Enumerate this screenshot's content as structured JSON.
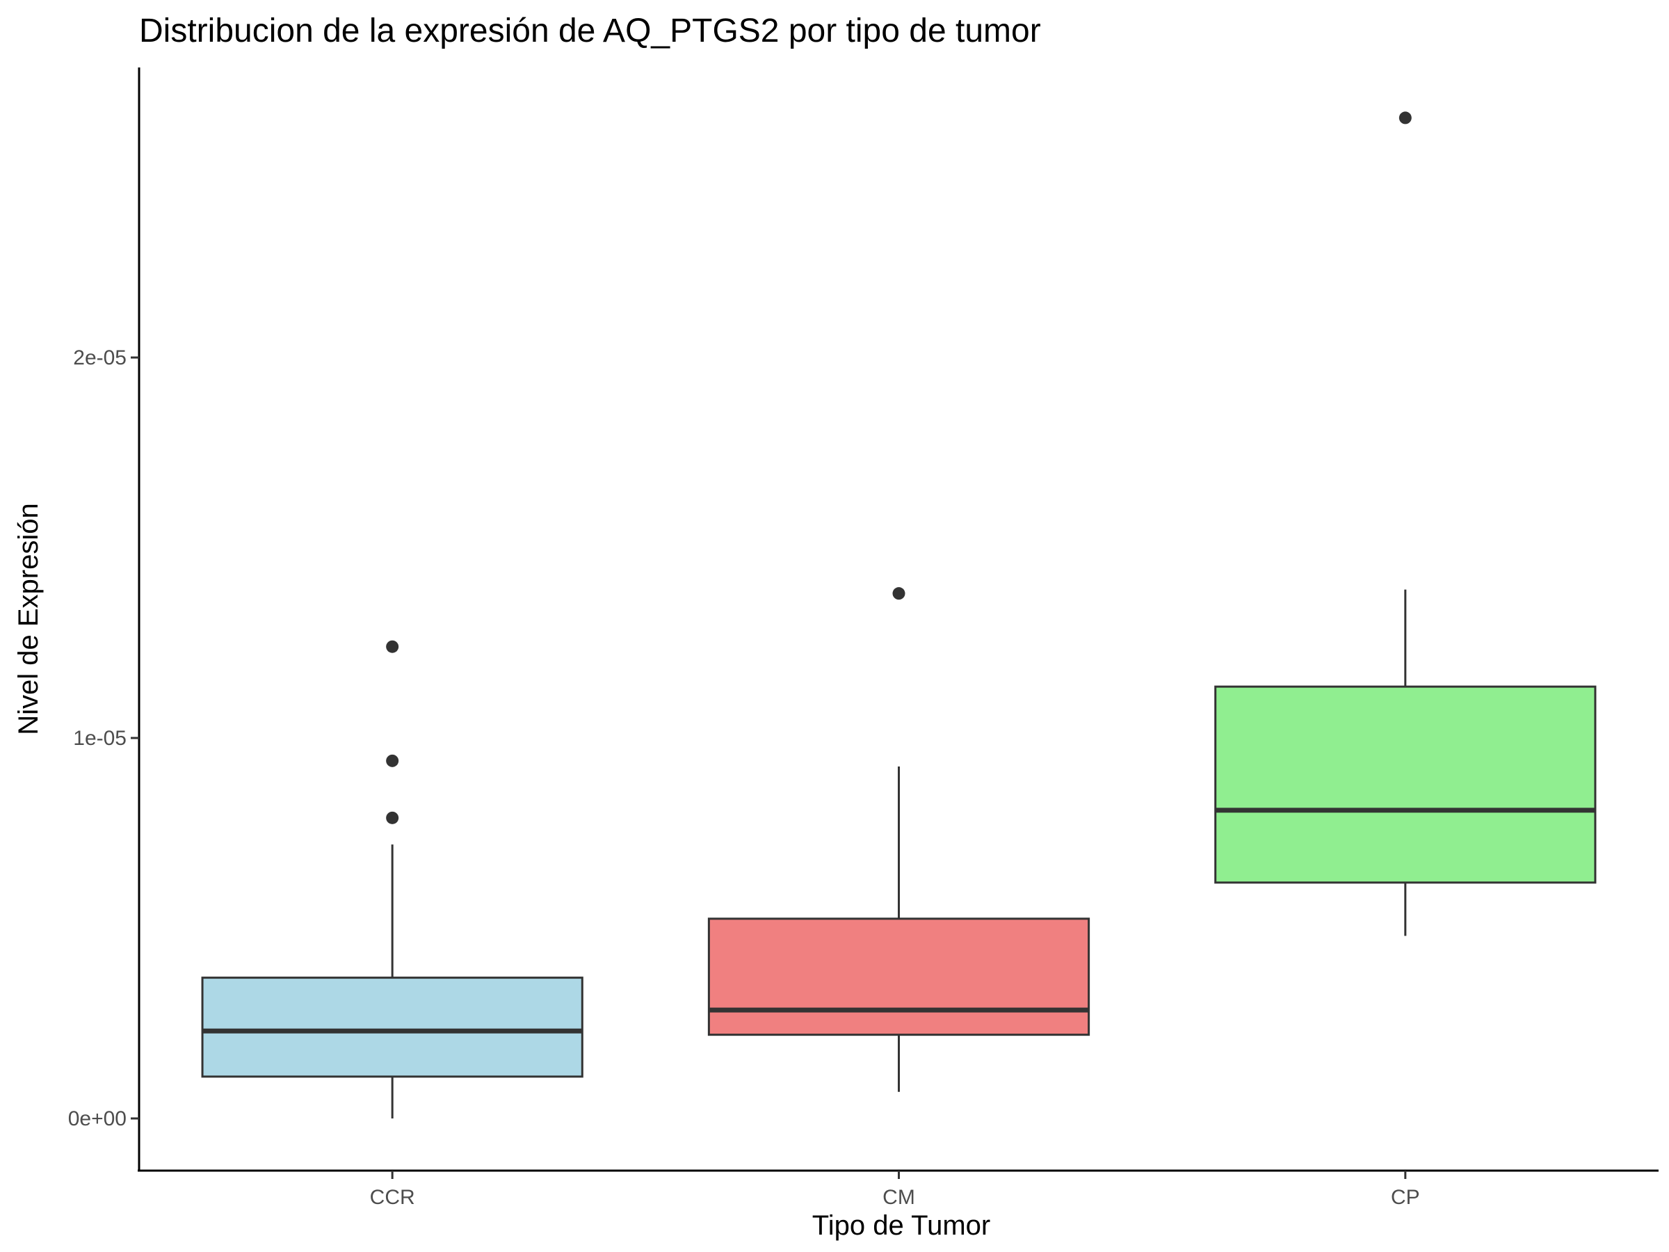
{
  "chart_data": {
    "type": "box",
    "title": "Distribucion de la expresión de AQ_PTGS2 por tipo de tumor",
    "xlabel": "Tipo de Tumor",
    "ylabel": "Nivel de Expresión",
    "ylim": [
      -1.3e-06,
      2.8e-05
    ],
    "yticks": [
      0,
      1e-05,
      2e-05
    ],
    "ytick_labels": [
      "0e+00",
      "1e-05",
      "2e-05"
    ],
    "categories": [
      "CCR",
      "CM",
      "CP"
    ],
    "grid": false,
    "legend": "none",
    "boxes": [
      {
        "name": "CCR",
        "fill": "#add8e6",
        "min": 0.0,
        "q1": 1.1e-06,
        "median": 2.3e-06,
        "q3": 3.7e-06,
        "max": 7.2e-06,
        "outliers": [
          7.9e-06,
          9.4e-06,
          1.24e-05
        ]
      },
      {
        "name": "CM",
        "fill": "#f08080",
        "min": 7e-07,
        "q1": 2.2e-06,
        "median": 2.85e-06,
        "q3": 5.25e-06,
        "max": 9.25e-06,
        "outliers": [
          1.38e-05
        ]
      },
      {
        "name": "CP",
        "fill": "#90ee90",
        "min": 4.8e-06,
        "q1": 6.2e-06,
        "median": 8.1e-06,
        "q3": 1.135e-05,
        "max": 1.39e-05,
        "outliers": [
          2.63e-05
        ]
      }
    ],
    "colors": {
      "box_stroke": "#333333",
      "outlier": "#333333",
      "axis": "#000000"
    }
  }
}
